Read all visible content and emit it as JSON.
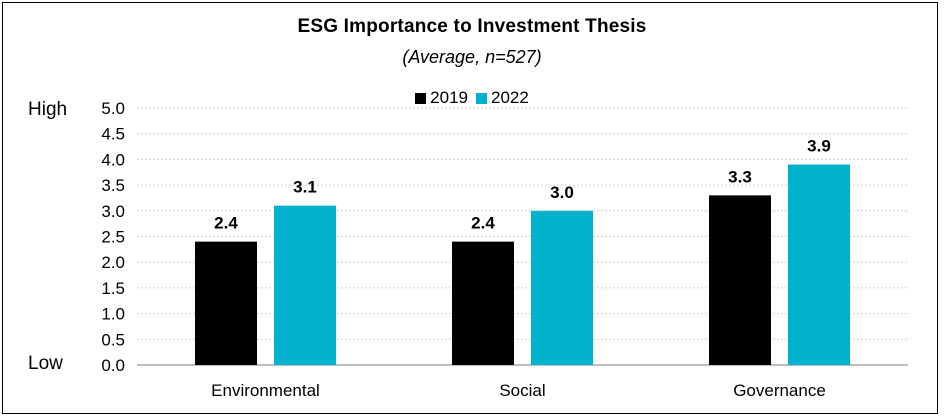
{
  "chart_data": {
    "type": "bar",
    "title": "ESG Importance to Investment Thesis",
    "subtitle": "(Average, n=527)",
    "categories": [
      "Environmental",
      "Social",
      "Governance"
    ],
    "series": [
      {
        "name": "2019",
        "values": [
          2.4,
          2.4,
          3.3
        ],
        "labels": [
          "2.4",
          "2.4",
          "3.3"
        ],
        "color": "#000000"
      },
      {
        "name": "2022",
        "values": [
          3.1,
          3.0,
          3.9
        ],
        "labels": [
          "3.1",
          "3.0",
          "3.9"
        ],
        "color": "#00B2CC"
      }
    ],
    "ylim": [
      0,
      5
    ],
    "yticks": [
      "0.0",
      "0.5",
      "1.0",
      "1.5",
      "2.0",
      "2.5",
      "3.0",
      "3.5",
      "4.0",
      "4.5",
      "5.0"
    ],
    "y_high_label": "High",
    "y_low_label": "Low",
    "legend_position": "top-center",
    "grid": true
  },
  "colors": {
    "gridline": "#d0d0d0",
    "axis": "#999999"
  }
}
